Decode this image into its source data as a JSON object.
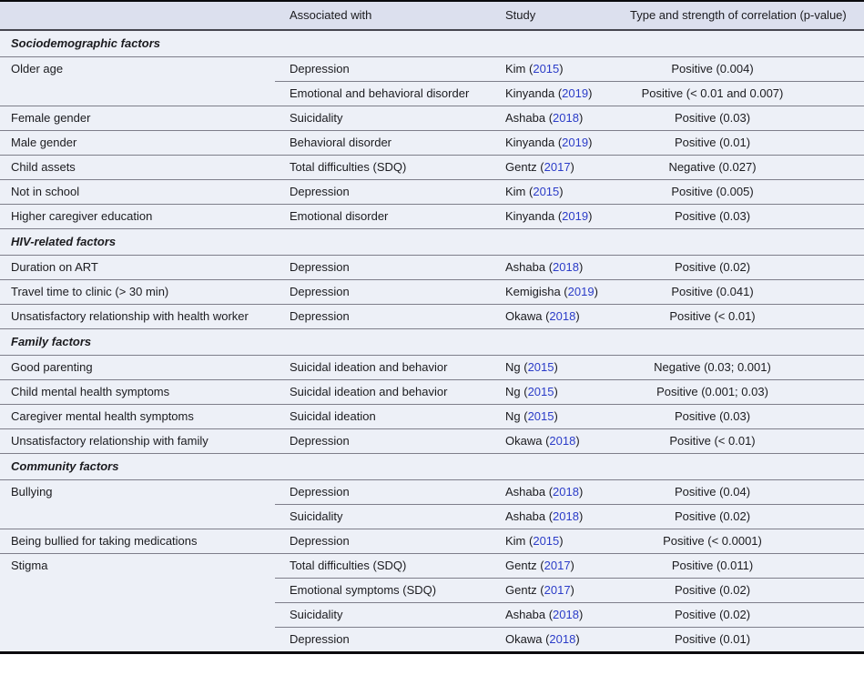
{
  "table": {
    "link_color": "#2b3cc8",
    "columns": [
      "",
      "Associated with",
      "Study",
      "Type and strength of correlation (p-value)"
    ],
    "sections": [
      {
        "title": "Sociodemographic factors",
        "groups": [
          {
            "factor": "Older age",
            "entries": [
              {
                "associated_with": "Depression",
                "study_author": "Kim",
                "study_year": "2015",
                "correlation": "Positive (0.004)"
              },
              {
                "associated_with": "Emotional and behavioral disorder",
                "study_author": "Kinyanda",
                "study_year": "2019",
                "correlation": "Positive (< 0.01 and 0.007)"
              }
            ]
          },
          {
            "factor": "Female gender",
            "entries": [
              {
                "associated_with": "Suicidality",
                "study_author": "Ashaba",
                "study_year": "2018",
                "correlation": "Positive (0.03)"
              }
            ]
          },
          {
            "factor": "Male gender",
            "entries": [
              {
                "associated_with": "Behavioral disorder",
                "study_author": "Kinyanda",
                "study_year": "2019",
                "correlation": "Positive (0.01)"
              }
            ]
          },
          {
            "factor": "Child assets",
            "entries": [
              {
                "associated_with": "Total difficulties (SDQ)",
                "study_author": "Gentz",
                "study_year": "2017",
                "correlation": "Negative (0.027)"
              }
            ]
          },
          {
            "factor": "Not in school",
            "entries": [
              {
                "associated_with": "Depression",
                "study_author": "Kim",
                "study_year": "2015",
                "correlation": "Positive (0.005)"
              }
            ]
          },
          {
            "factor": "Higher caregiver education",
            "entries": [
              {
                "associated_with": "Emotional disorder",
                "study_author": "Kinyanda",
                "study_year": "2019",
                "correlation": "Positive (0.03)"
              }
            ]
          }
        ]
      },
      {
        "title": "HIV-related factors",
        "groups": [
          {
            "factor": "Duration on ART",
            "entries": [
              {
                "associated_with": "Depression",
                "study_author": "Ashaba",
                "study_year": "2018",
                "correlation": "Positive (0.02)"
              }
            ]
          },
          {
            "factor": "Travel time to clinic (> 30 min)",
            "entries": [
              {
                "associated_with": "Depression",
                "study_author": "Kemigisha",
                "study_year": "2019",
                "correlation": "Positive (0.041)"
              }
            ]
          },
          {
            "factor": "Unsatisfactory relationship with health worker",
            "entries": [
              {
                "associated_with": "Depression",
                "study_author": "Okawa",
                "study_year": "2018",
                "correlation": "Positive (< 0.01)"
              }
            ]
          }
        ]
      },
      {
        "title": "Family factors",
        "groups": [
          {
            "factor": "Good parenting",
            "entries": [
              {
                "associated_with": "Suicidal ideation and behavior",
                "study_author": "Ng",
                "study_year": "2015",
                "correlation": "Negative (0.03; 0.001)"
              }
            ]
          },
          {
            "factor": "Child mental health symptoms",
            "entries": [
              {
                "associated_with": "Suicidal ideation and behavior",
                "study_author": "Ng",
                "study_year": "2015",
                "correlation": "Positive (0.001; 0.03)"
              }
            ]
          },
          {
            "factor": "Caregiver mental health symptoms",
            "entries": [
              {
                "associated_with": "Suicidal ideation",
                "study_author": "Ng",
                "study_year": "2015",
                "correlation": "Positive (0.03)"
              }
            ]
          },
          {
            "factor": "Unsatisfactory relationship with family",
            "entries": [
              {
                "associated_with": "Depression",
                "study_author": "Okawa",
                "study_year": "2018",
                "correlation": "Positive (< 0.01)"
              }
            ]
          }
        ]
      },
      {
        "title": "Community factors",
        "groups": [
          {
            "factor": "Bullying",
            "entries": [
              {
                "associated_with": "Depression",
                "study_author": "Ashaba",
                "study_year": "2018",
                "correlation": "Positive (0.04)"
              },
              {
                "associated_with": "Suicidality",
                "study_author": "Ashaba",
                "study_year": "2018",
                "correlation": "Positive (0.02)"
              }
            ]
          },
          {
            "factor": "Being bullied for taking medications",
            "entries": [
              {
                "associated_with": "Depression",
                "study_author": "Kim",
                "study_year": "2015",
                "correlation": "Positive (< 0.0001)"
              }
            ]
          },
          {
            "factor": "Stigma",
            "entries": [
              {
                "associated_with": "Total difficulties (SDQ)",
                "study_author": "Gentz",
                "study_year": "2017",
                "correlation": "Positive (0.011)"
              },
              {
                "associated_with": "Emotional symptoms (SDQ)",
                "study_author": "Gentz",
                "study_year": "2017",
                "correlation": "Positive (0.02)"
              },
              {
                "associated_with": "Suicidality",
                "study_author": "Ashaba",
                "study_year": "2018",
                "correlation": "Positive (0.02)"
              },
              {
                "associated_with": "Depression",
                "study_author": "Okawa",
                "study_year": "2018",
                "correlation": "Positive (0.01)"
              }
            ]
          }
        ]
      }
    ]
  }
}
